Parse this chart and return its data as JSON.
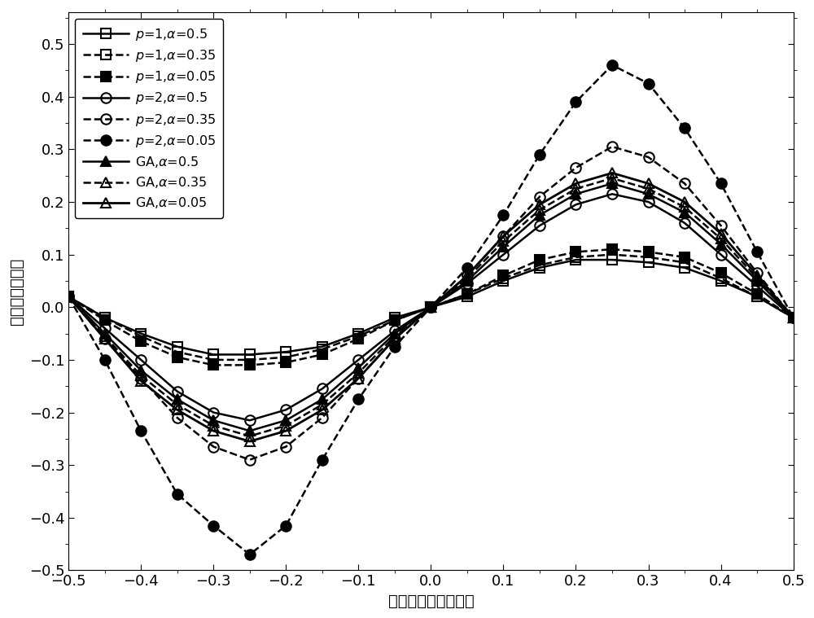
{
  "x": [
    -0.5,
    -0.45,
    -0.4,
    -0.35,
    -0.3,
    -0.25,
    -0.2,
    -0.15,
    -0.1,
    -0.05,
    0.0,
    0.05,
    0.1,
    0.15,
    0.2,
    0.25,
    0.3,
    0.35,
    0.4,
    0.45,
    0.5
  ],
  "xlabel": "定时误差归一化偏差",
  "ylabel": "误差检测器输出",
  "xlim": [
    -0.5,
    0.5
  ],
  "ylim": [
    -0.5,
    0.56
  ],
  "xticks": [
    -0.5,
    -0.4,
    -0.3,
    -0.2,
    -0.1,
    0.0,
    0.1,
    0.2,
    0.3,
    0.4,
    0.5
  ],
  "yticks": [
    -0.5,
    -0.4,
    -0.3,
    -0.2,
    -0.1,
    0.0,
    0.1,
    0.2,
    0.3,
    0.4,
    0.5
  ],
  "series": [
    {
      "label": "$p$=1,$\\alpha$=0.5",
      "marker": "s",
      "fillstyle": "none",
      "linestyle": "-",
      "linewidth": 1.8,
      "markersize": 8,
      "values": [
        0.02,
        -0.02,
        -0.05,
        -0.075,
        -0.09,
        -0.09,
        -0.085,
        -0.075,
        -0.05,
        -0.02,
        0.0,
        0.02,
        0.05,
        0.075,
        0.09,
        0.09,
        0.085,
        0.075,
        0.05,
        0.02,
        -0.02
      ]
    },
    {
      "label": "$p$=1,$\\alpha$=0.35",
      "marker": "s",
      "fillstyle": "none",
      "linestyle": "--",
      "linewidth": 1.8,
      "markersize": 8,
      "values": [
        0.02,
        -0.02,
        -0.055,
        -0.085,
        -0.1,
        -0.1,
        -0.095,
        -0.08,
        -0.055,
        -0.025,
        0.0,
        0.025,
        0.055,
        0.08,
        0.095,
        0.1,
        0.095,
        0.085,
        0.055,
        0.02,
        -0.02
      ]
    },
    {
      "label": "$p$=1,$\\alpha$=0.05",
      "marker": "s",
      "fillstyle": "full",
      "linestyle": "--",
      "linewidth": 1.8,
      "markersize": 8,
      "values": [
        0.02,
        -0.025,
        -0.065,
        -0.095,
        -0.11,
        -0.11,
        -0.105,
        -0.09,
        -0.06,
        -0.025,
        0.0,
        0.025,
        0.06,
        0.09,
        0.105,
        0.11,
        0.105,
        0.095,
        0.065,
        0.025,
        -0.02
      ]
    },
    {
      "label": "$p$=2,$\\alpha$=0.5",
      "marker": "o",
      "fillstyle": "none",
      "linestyle": "-",
      "linewidth": 1.8,
      "markersize": 9,
      "values": [
        0.02,
        -0.04,
        -0.1,
        -0.16,
        -0.2,
        -0.215,
        -0.195,
        -0.155,
        -0.1,
        -0.045,
        0.0,
        0.045,
        0.1,
        0.155,
        0.195,
        0.215,
        0.2,
        0.16,
        0.1,
        0.04,
        -0.02
      ]
    },
    {
      "label": "$p$=2,$\\alpha$=0.35",
      "marker": "o",
      "fillstyle": "none",
      "linestyle": "--",
      "linewidth": 1.8,
      "markersize": 9,
      "values": [
        0.02,
        -0.06,
        -0.135,
        -0.21,
        -0.265,
        -0.29,
        -0.265,
        -0.21,
        -0.135,
        -0.06,
        0.0,
        0.06,
        0.135,
        0.21,
        0.265,
        0.305,
        0.285,
        0.235,
        0.155,
        0.065,
        -0.02
      ]
    },
    {
      "label": "$p$=2,$\\alpha$=0.05",
      "marker": "o",
      "fillstyle": "full",
      "linestyle": "--",
      "linewidth": 1.8,
      "markersize": 9,
      "values": [
        0.02,
        -0.1,
        -0.235,
        -0.355,
        -0.415,
        -0.47,
        -0.415,
        -0.29,
        -0.175,
        -0.075,
        0.0,
        0.075,
        0.175,
        0.29,
        0.39,
        0.46,
        0.425,
        0.34,
        0.235,
        0.105,
        -0.02
      ]
    },
    {
      "label": "GA,$\\alpha$=0.5",
      "marker": "^",
      "fillstyle": "full",
      "linestyle": "-",
      "linewidth": 1.8,
      "markersize": 9,
      "values": [
        0.02,
        -0.05,
        -0.12,
        -0.175,
        -0.215,
        -0.235,
        -0.215,
        -0.175,
        -0.115,
        -0.05,
        0.0,
        0.05,
        0.115,
        0.175,
        0.215,
        0.235,
        0.215,
        0.18,
        0.12,
        0.05,
        -0.02
      ]
    },
    {
      "label": "GA,$\\alpha$=0.35",
      "marker": "^",
      "fillstyle": "none",
      "linestyle": "--",
      "linewidth": 1.8,
      "markersize": 9,
      "values": [
        0.02,
        -0.055,
        -0.13,
        -0.185,
        -0.225,
        -0.245,
        -0.225,
        -0.185,
        -0.125,
        -0.055,
        0.0,
        0.055,
        0.125,
        0.185,
        0.225,
        0.245,
        0.225,
        0.19,
        0.13,
        0.055,
        -0.02
      ]
    },
    {
      "label": "GA,$\\alpha$=0.05",
      "marker": "^",
      "fillstyle": "none",
      "linestyle": "-",
      "linewidth": 2.0,
      "markersize": 9,
      "values": [
        0.02,
        -0.06,
        -0.14,
        -0.195,
        -0.235,
        -0.255,
        -0.235,
        -0.195,
        -0.135,
        -0.06,
        0.0,
        0.06,
        0.135,
        0.195,
        0.235,
        0.255,
        0.235,
        0.2,
        0.14,
        0.06,
        -0.02
      ]
    }
  ],
  "legend_loc": "upper left",
  "font_size": 14
}
